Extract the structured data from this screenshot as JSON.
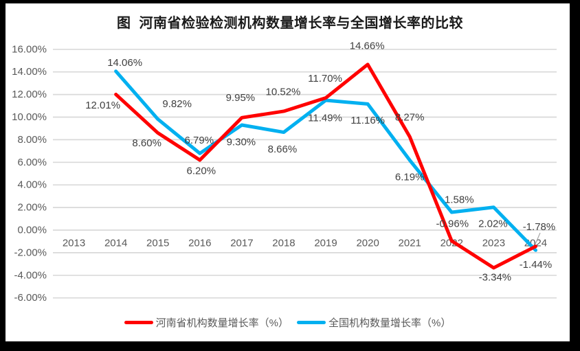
{
  "frame": {
    "border_color": "#000000",
    "background": "#ffffff"
  },
  "chart_data": {
    "type": "line",
    "title": "图  河南省检验检测机构数量增长率与全国增长率的比较",
    "categories": [
      "2013",
      "2014",
      "2015",
      "2016",
      "2017",
      "2018",
      "2019",
      "2020",
      "2021",
      "2022",
      "2023",
      "2024"
    ],
    "series": [
      {
        "name": "河南省机构数量增长率（%）",
        "color": "#FF0000",
        "values": [
          null,
          12.01,
          8.6,
          6.2,
          9.95,
          10.52,
          11.7,
          14.66,
          8.27,
          -0.96,
          -3.34,
          -1.44
        ]
      },
      {
        "name": "全国机构数量增长率（%）",
        "color": "#00B0F0",
        "values": [
          null,
          14.06,
          9.82,
          6.79,
          9.3,
          8.66,
          11.49,
          11.16,
          6.19,
          1.58,
          2.02,
          -1.78
        ]
      }
    ],
    "data_labels": [
      [
        null,
        "12.01%",
        "8.60%",
        "6.20%",
        "9.95%",
        "10.52%",
        "11.70%",
        "14.66%",
        "8.27%",
        "-0.96%",
        "-3.34%",
        "-1.44%"
      ],
      [
        null,
        "14.06%",
        "9.82%",
        "6.79%",
        "9.30%",
        "8.66%",
        "11.49%",
        "11.16%",
        "6.19%",
        "1.58%",
        "2.02%",
        "-1.78%"
      ]
    ],
    "y_axis": {
      "min": -6,
      "max": 16,
      "step": 2,
      "tick_labels": [
        "16.00%",
        "14.00%",
        "12.00%",
        "10.00%",
        "8.00%",
        "6.00%",
        "4.00%",
        "2.00%",
        "0.00%",
        "-2.00%",
        "-4.00%",
        "-6.00%"
      ]
    },
    "grid": true,
    "legend_position": "bottom",
    "colors": {
      "axis_text": "#595959",
      "data_label_text": "#3f3f3f",
      "gridline": "#D9D9D9",
      "leader_line": "#A6A6A6",
      "title_text": "#1a1a1a"
    }
  }
}
